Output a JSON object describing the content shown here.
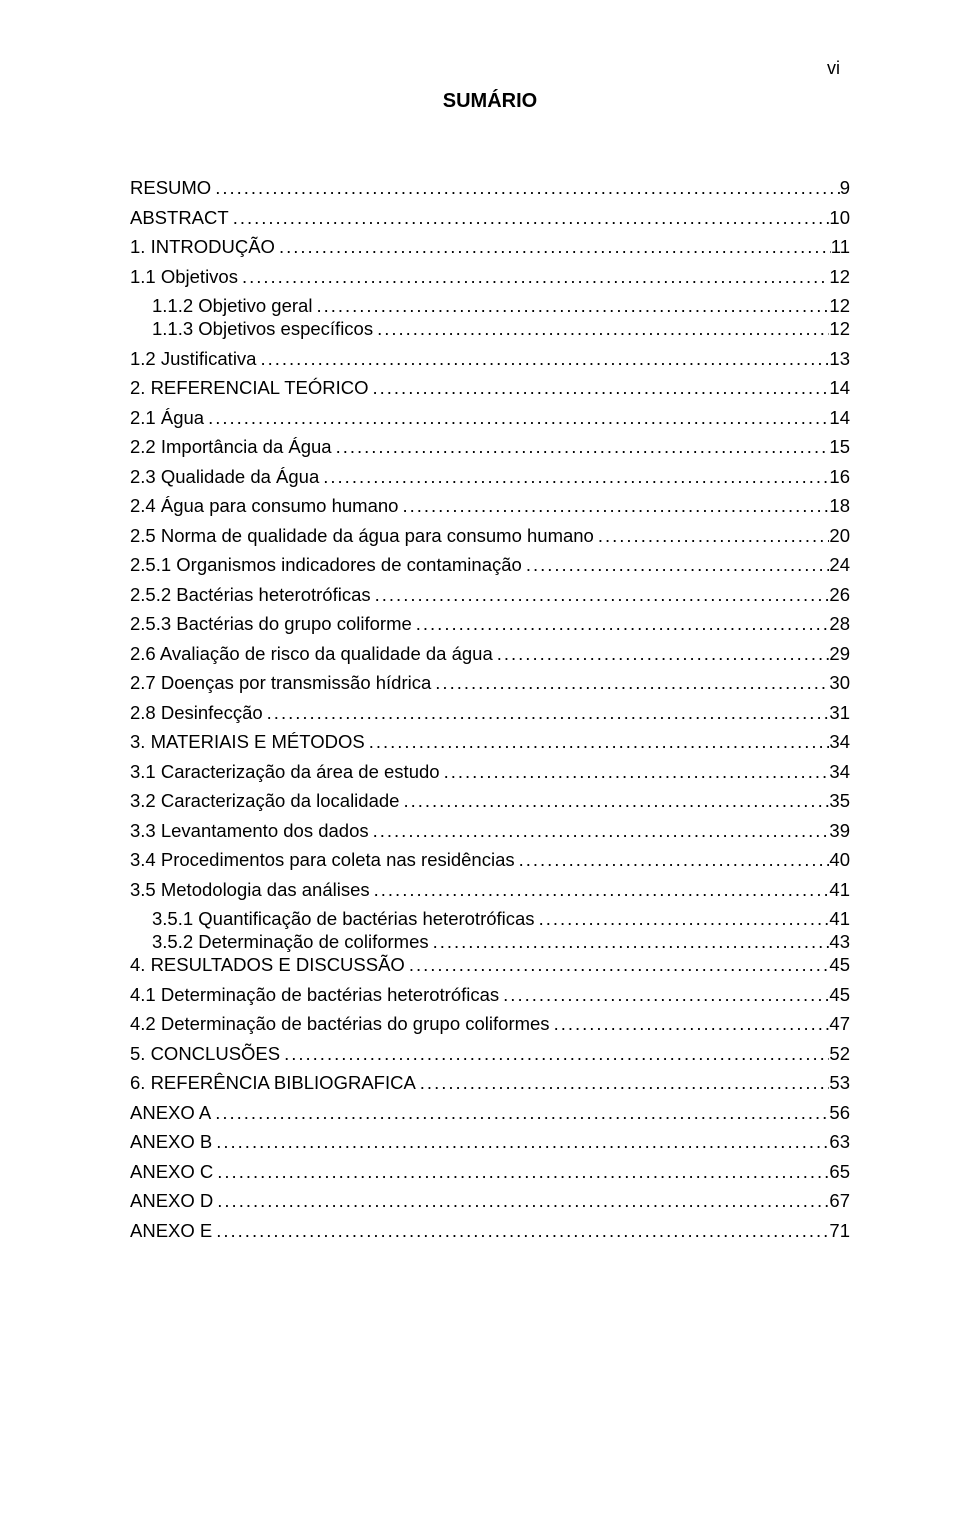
{
  "page_number_label": "vi",
  "title": "SUMÁRIO",
  "leader_char": ".",
  "colors": {
    "text": "#000000",
    "background": "#ffffff"
  },
  "typography": {
    "family": "Arial",
    "body_size_pt": 14,
    "title_size_pt": 15,
    "title_weight": "bold"
  },
  "entries": [
    {
      "label": "RESUMO",
      "page": "9",
      "indent": 0,
      "tight": false
    },
    {
      "label": "ABSTRACT",
      "page": "10",
      "indent": 0,
      "tight": false
    },
    {
      "label": "1. INTRODUÇÃO",
      "page": "11",
      "indent": 0,
      "tight": false
    },
    {
      "label": "1.1 Objetivos",
      "page": "12",
      "indent": 0,
      "tight": false
    },
    {
      "label": "1.1.2 Objetivo geral",
      "page": "12",
      "indent": 1,
      "tight": true
    },
    {
      "label": "1.1.3 Objetivos específicos",
      "page": "12",
      "indent": 1,
      "tight": false
    },
    {
      "label": "1.2 Justificativa",
      "page": "13",
      "indent": 0,
      "tight": false
    },
    {
      "label": "2. REFERENCIAL TEÓRICO",
      "page": "14",
      "indent": 0,
      "tight": false
    },
    {
      "label": "2.1 Água",
      "page": "14",
      "indent": 0,
      "tight": false
    },
    {
      "label": "2.2 Importância da Água",
      "page": "15",
      "indent": 0,
      "tight": false
    },
    {
      "label": "2.3 Qualidade da Água",
      "page": "16",
      "indent": 0,
      "tight": false
    },
    {
      "label": "2.4 Água para consumo humano",
      "page": "18",
      "indent": 0,
      "tight": false
    },
    {
      "label": "2.5 Norma de qualidade da água para consumo humano",
      "page": "20",
      "indent": 0,
      "tight": false
    },
    {
      "label": "2.5.1 Organismos indicadores de contaminação",
      "page": "24",
      "indent": 0,
      "tight": false
    },
    {
      "label": "2.5.2 Bactérias heterotróficas",
      "page": "26",
      "indent": 0,
      "tight": false
    },
    {
      "label": "2.5.3 Bactérias do grupo coliforme",
      "page": "28",
      "indent": 0,
      "tight": false
    },
    {
      "label": "2.6 Avaliação de risco da qualidade da água",
      "page": "29",
      "indent": 0,
      "tight": false
    },
    {
      "label": "2.7 Doenças por transmissão hídrica",
      "page": "30",
      "indent": 0,
      "tight": false
    },
    {
      "label": "2.8 Desinfecção",
      "page": "31",
      "indent": 0,
      "tight": false
    },
    {
      "label": "3. MATERIAIS E MÉTODOS",
      "page": "34",
      "indent": 0,
      "tight": false
    },
    {
      "label": "3.1 Caracterização da área de estudo",
      "page": "34",
      "indent": 0,
      "tight": false
    },
    {
      "label": "3.2 Caracterização da localidade",
      "page": "35",
      "indent": 0,
      "tight": false
    },
    {
      "label": "3.3 Levantamento dos dados",
      "page": "39",
      "indent": 0,
      "tight": false
    },
    {
      "label": "3.4 Procedimentos para coleta nas residências",
      "page": "40",
      "indent": 0,
      "tight": false
    },
    {
      "label": "3.5 Metodologia das análises",
      "page": "41",
      "indent": 0,
      "tight": false
    },
    {
      "label": "3.5.1 Quantificação de bactérias heterotróficas",
      "page": "41",
      "indent": 1,
      "tight": true
    },
    {
      "label": "3.5.2 Determinação de coliformes",
      "page": "43",
      "indent": 1,
      "tight": true
    },
    {
      "label": "4. RESULTADOS E DISCUSSÃO",
      "page": "45",
      "indent": 0,
      "tight": false
    },
    {
      "label": "4.1 Determinação de bactérias heterotróficas",
      "page": "45",
      "indent": 0,
      "tight": false
    },
    {
      "label": "4.2 Determinação de bactérias do grupo coliformes",
      "page": "47",
      "indent": 0,
      "tight": false
    },
    {
      "label": "5. CONCLUSÕES",
      "page": "52",
      "indent": 0,
      "tight": false
    },
    {
      "label": "6. REFERÊNCIA BIBLIOGRAFICA",
      "page": "53",
      "indent": 0,
      "tight": false
    },
    {
      "label": "ANEXO A",
      "page": "56",
      "indent": 0,
      "tight": false
    },
    {
      "label": "ANEXO B",
      "page": "63",
      "indent": 0,
      "tight": false
    },
    {
      "label": "ANEXO C",
      "page": "65",
      "indent": 0,
      "tight": false
    },
    {
      "label": "ANEXO D",
      "page": "67",
      "indent": 0,
      "tight": false
    },
    {
      "label": "ANEXO E",
      "page": "71",
      "indent": 0,
      "tight": false
    }
  ]
}
